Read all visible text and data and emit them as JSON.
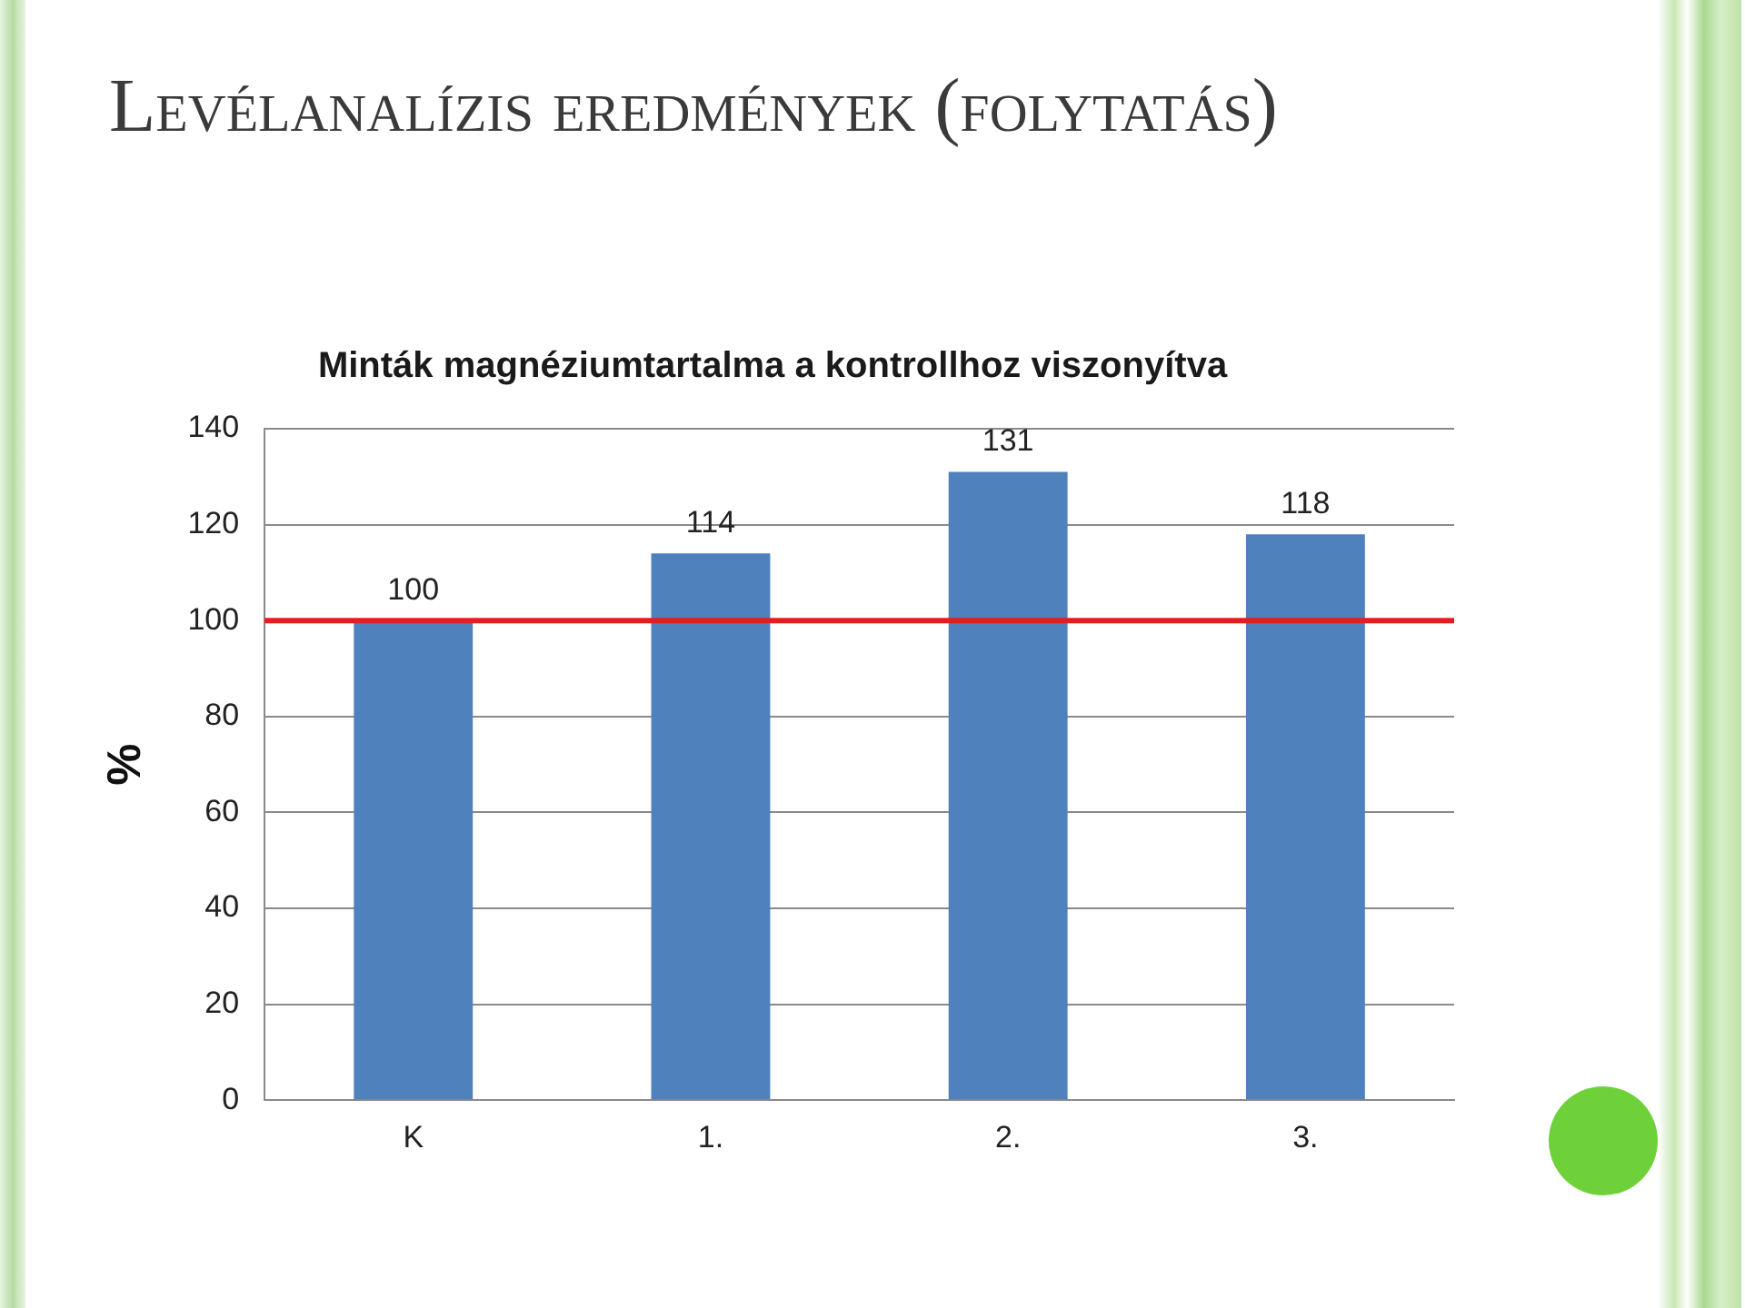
{
  "chart_data": {
    "type": "bar",
    "title": "Levélanalízis eredmények (folytatás)",
    "subtitle": "Minták magnéziumtartalma a kontrollhoz viszonyítva",
    "ylabel": "%",
    "categories": [
      "K",
      "1.",
      "2.",
      "3."
    ],
    "values": [
      100,
      114,
      131,
      118
    ],
    "color": "#4f81bd",
    "ylim": [
      0,
      140
    ],
    "yticks": [
      0,
      20,
      40,
      60,
      80,
      100,
      120,
      140
    ],
    "grid": "y",
    "data_labels": true,
    "legend": false,
    "ref_lines": [
      {
        "axis": "y",
        "value": 100,
        "color": "#e02020"
      }
    ]
  }
}
